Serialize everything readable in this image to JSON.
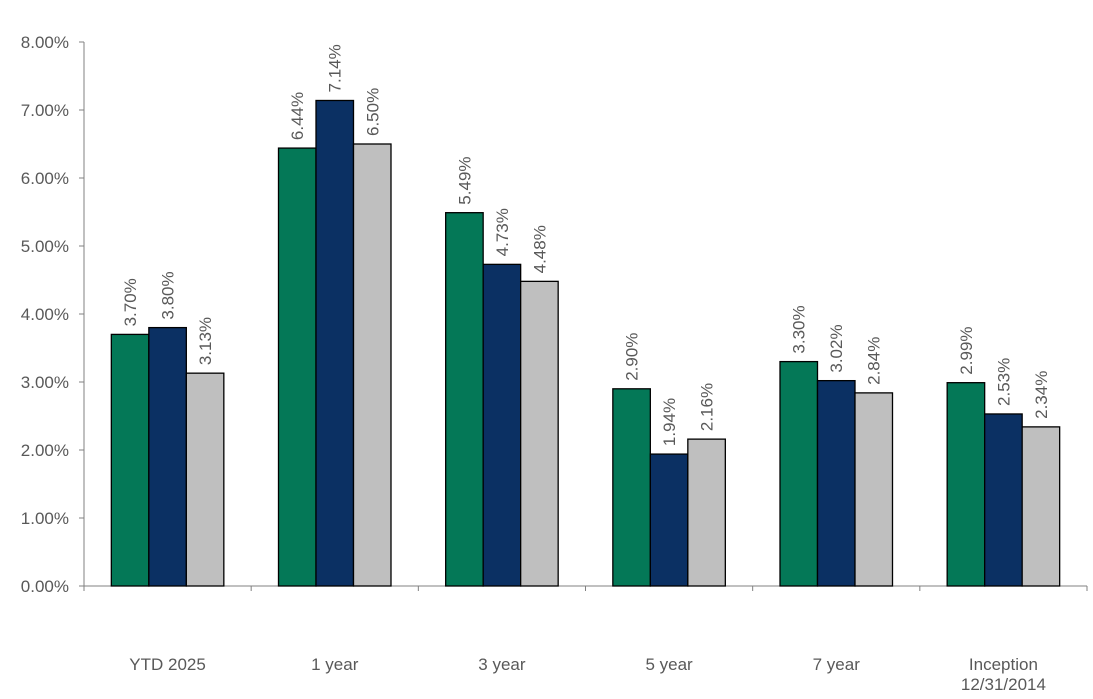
{
  "chart_data": {
    "type": "bar",
    "categories": [
      [
        "YTD 2025"
      ],
      [
        "1 year"
      ],
      [
        "3 year"
      ],
      [
        "5 year"
      ],
      [
        "7 year"
      ],
      [
        "Inception",
        "12/31/2014"
      ]
    ],
    "series": [
      {
        "color": "#047857",
        "values": [
          3.7,
          6.44,
          5.49,
          2.9,
          3.3,
          2.99
        ],
        "labels": [
          "3.70%",
          "6.44%",
          "5.49%",
          "2.90%",
          "3.30%",
          "2.99%"
        ]
      },
      {
        "color": "#0b3063",
        "values": [
          3.8,
          7.14,
          4.73,
          1.94,
          3.02,
          2.53
        ],
        "labels": [
          "3.80%",
          "7.14%",
          "4.73%",
          "1.94%",
          "3.02%",
          "2.53%"
        ]
      },
      {
        "color": "#bfbfbf",
        "values": [
          3.13,
          6.5,
          4.48,
          2.16,
          2.84,
          2.34
        ],
        "labels": [
          "3.13%",
          "6.50%",
          "4.48%",
          "2.16%",
          "2.84%",
          "2.34%"
        ]
      }
    ],
    "y_ticks": [
      0,
      1,
      2,
      3,
      4,
      5,
      6,
      7,
      8
    ],
    "y_tick_labels": [
      "0.00%",
      "1.00%",
      "2.00%",
      "3.00%",
      "4.00%",
      "5.00%",
      "6.00%",
      "7.00%",
      "8.00%"
    ],
    "ylim": [
      0,
      8
    ],
    "grid": false,
    "legend": "none",
    "data_label_rotation": "vertical"
  }
}
